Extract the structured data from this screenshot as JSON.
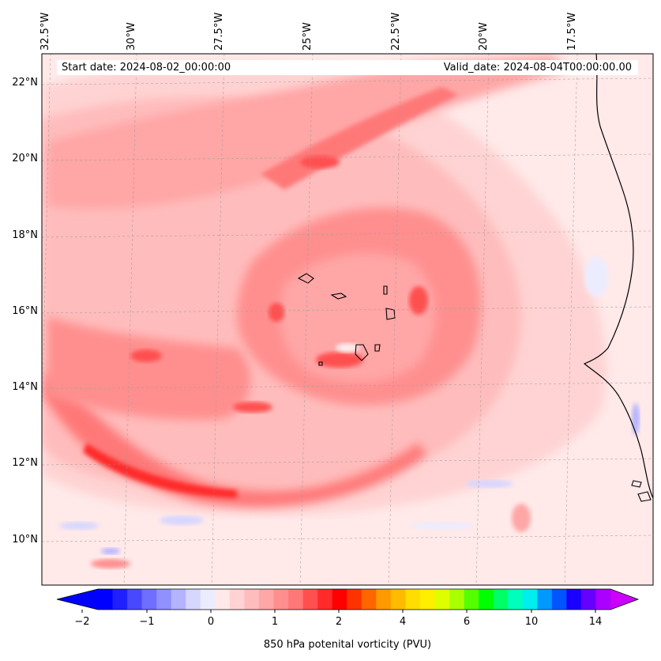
{
  "map": {
    "start_label": "Start date: 2024-08-02_00:00:00",
    "valid_label": "Valid_date: 2024-08-04T00:00:00.00",
    "lat_labels": [
      "22°N",
      "20°N",
      "18°N",
      "16°N",
      "14°N",
      "12°N",
      "10°N"
    ],
    "lon_labels": [
      "32.5°W",
      "30°W",
      "27.5°W",
      "25°W",
      "22.5°W",
      "20°W",
      "17.5°W"
    ],
    "field": "850 hPa potential vorticity",
    "extent": {
      "lon_min": -33.0,
      "lon_max": -15.5,
      "lat_min": 8.8,
      "lat_max": 22.8
    }
  },
  "colorbar": {
    "label": "850 hPa potenital vorticity (PVU)",
    "tick_labels": [
      "−2",
      "−1",
      "0",
      "1",
      "2",
      "4",
      "6",
      "10",
      "14"
    ],
    "colors": [
      "#0000ff",
      "#2020ff",
      "#4848ff",
      "#6e6eff",
      "#9090ff",
      "#b3b3ff",
      "#d6d6ff",
      "#ececff",
      "#ffe9e9",
      "#ffd3d3",
      "#ffbcbc",
      "#ffa6a6",
      "#ff8f8f",
      "#ff7878",
      "#ff5050",
      "#ff2a2a",
      "#ff0000",
      "#ff3300",
      "#ff6600",
      "#ff9900",
      "#ffbb00",
      "#ffdd00",
      "#ffee00",
      "#ddff00",
      "#aaff00",
      "#55ff00",
      "#00ff00",
      "#00ff66",
      "#00ffbb",
      "#00eeee",
      "#0099ff",
      "#0055ff",
      "#1a00ff",
      "#6600ff",
      "#aa00ff"
    ],
    "under_color": "#0000ff",
    "over_color": "#cc00ff"
  }
}
